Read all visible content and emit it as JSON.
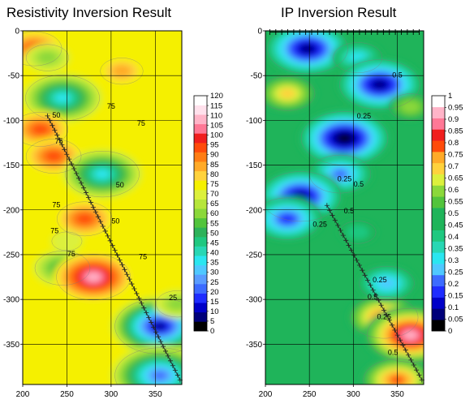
{
  "chart_data": [
    {
      "type": "heatmap",
      "title": "Resistivity Inversion Result",
      "xlabel": "",
      "ylabel": "",
      "xlim": [
        200,
        380
      ],
      "ylim": [
        -395,
        0
      ],
      "xticks": [
        200,
        250,
        300,
        350
      ],
      "yticks": [
        0,
        -50,
        -100,
        -150,
        -200,
        -250,
        -300,
        -350
      ],
      "grid": true,
      "background_value": 75,
      "colorbar": {
        "levels": [
          0,
          5,
          10,
          15,
          20,
          25,
          30,
          35,
          40,
          45,
          50,
          55,
          60,
          65,
          70,
          75,
          80,
          85,
          90,
          95,
          100,
          105,
          110,
          115,
          120
        ],
        "tick_labels": [
          "0",
          "5",
          "10",
          "15",
          "20",
          "25",
          "30",
          "35",
          "40",
          "45",
          "50",
          "55",
          "60",
          "65",
          "70",
          "75",
          "80",
          "85",
          "90",
          "95",
          "100",
          "105",
          "110",
          "115",
          "120"
        ],
        "colors": [
          "#000000",
          "#00007a",
          "#0000c8",
          "#1e2cff",
          "#3c6bff",
          "#5a9cff",
          "#4fc8ff",
          "#2ae6f0",
          "#28d7b4",
          "#1fc880",
          "#2db25a",
          "#52c43c",
          "#8bd83a",
          "#b6e63a",
          "#dcf03c",
          "#f5f000",
          "#ffd23c",
          "#ffaa28",
          "#ff7d14",
          "#ff4b0a",
          "#f01e1e",
          "#ff7896",
          "#ffb4c8",
          "#ffe1ec",
          "#ffffff"
        ]
      },
      "anomalies": [
        {
          "x": 213,
          "z": -20,
          "value": 100
        },
        {
          "x": 228,
          "z": -30,
          "value": 60
        },
        {
          "x": 245,
          "z": -75,
          "value": 35
        },
        {
          "x": 312,
          "z": -45,
          "value": 90
        },
        {
          "x": 220,
          "z": -110,
          "value": 100
        },
        {
          "x": 235,
          "z": -140,
          "value": 100
        },
        {
          "x": 290,
          "z": -160,
          "value": 35
        },
        {
          "x": 270,
          "z": -210,
          "value": 100
        },
        {
          "x": 250,
          "z": -235,
          "value": 70
        },
        {
          "x": 245,
          "z": -265,
          "value": 50
        },
        {
          "x": 280,
          "z": -275,
          "value": 115
        },
        {
          "x": 355,
          "z": -330,
          "value": 5
        },
        {
          "x": 375,
          "z": -305,
          "value": 60
        },
        {
          "x": 355,
          "z": -385,
          "value": 20
        }
      ],
      "contour_labels": [
        {
          "x": 238,
          "z": -97,
          "text": "50"
        },
        {
          "x": 300,
          "z": -87,
          "text": "75"
        },
        {
          "x": 334,
          "z": -106,
          "text": "75"
        },
        {
          "x": 241,
          "z": -126,
          "text": "75"
        },
        {
          "x": 310,
          "z": -175,
          "text": "50"
        },
        {
          "x": 238,
          "z": -197,
          "text": "75"
        },
        {
          "x": 305,
          "z": -215,
          "text": "50"
        },
        {
          "x": 236,
          "z": -226,
          "text": "75"
        },
        {
          "x": 255,
          "z": -252,
          "text": "75"
        },
        {
          "x": 336,
          "z": -255,
          "text": "75"
        },
        {
          "x": 370,
          "z": -301,
          "text": "25"
        }
      ],
      "electrode_line": {
        "x_start": 228,
        "z_start": -95,
        "x_end": 378,
        "z_end": -390,
        "count": 56
      }
    },
    {
      "type": "heatmap",
      "title": "IP Inversion Result",
      "xlabel": "",
      "ylabel": "",
      "xlim": [
        200,
        380
      ],
      "ylim": [
        -395,
        0
      ],
      "xticks": [
        200,
        250,
        300,
        350
      ],
      "yticks": [
        0,
        -50,
        -100,
        -150,
        -200,
        -250,
        -300,
        -350
      ],
      "grid": true,
      "background_value": 0.5,
      "colorbar": {
        "levels": [
          0,
          0.05,
          0.1,
          0.15,
          0.2,
          0.25,
          0.3,
          0.35,
          0.4,
          0.45,
          0.5,
          0.55,
          0.6,
          0.65,
          0.7,
          0.75,
          0.8,
          0.85,
          0.9,
          0.95,
          1
        ],
        "tick_labels": [
          "0",
          "0.05",
          "0.1",
          "0.15",
          "0.2",
          "0.25",
          "0.3",
          "0.35",
          "0.4",
          "0.45",
          "0.5",
          "0.55",
          "0.6",
          "0.65",
          "0.7",
          "0.75",
          "0.8",
          "0.85",
          "0.9",
          "0.95",
          "1"
        ],
        "colors": [
          "#000000",
          "#00007a",
          "#0000c8",
          "#1e2cff",
          "#3c6bff",
          "#4fc8ff",
          "#2ae6f0",
          "#28d7b4",
          "#1fc880",
          "#1fb45a",
          "#1fb45a",
          "#52c43c",
          "#8bd83a",
          "#dcf03c",
          "#ffd23c",
          "#ffaa28",
          "#ff4b0a",
          "#f01e1e",
          "#ff7896",
          "#ffb4c8",
          "#ffffff"
        ]
      },
      "anomalies": [
        {
          "x": 225,
          "z": -70,
          "value": 0.75
        },
        {
          "x": 248,
          "z": -20,
          "value": 0.05
        },
        {
          "x": 305,
          "z": -30,
          "value": 0.3
        },
        {
          "x": 330,
          "z": -60,
          "value": 0.05
        },
        {
          "x": 365,
          "z": -85,
          "value": 0.65
        },
        {
          "x": 290,
          "z": -120,
          "value": 0.0
        },
        {
          "x": 285,
          "z": -160,
          "value": 0.2
        },
        {
          "x": 240,
          "z": -185,
          "value": 0.05
        },
        {
          "x": 225,
          "z": -210,
          "value": 0.15
        },
        {
          "x": 305,
          "z": -225,
          "value": 0.4
        },
        {
          "x": 335,
          "z": -320,
          "value": 0.85
        },
        {
          "x": 365,
          "z": -340,
          "value": 1.0
        },
        {
          "x": 350,
          "z": -390,
          "value": 0.85
        },
        {
          "x": 338,
          "z": -282,
          "value": 0.25
        }
      ],
      "contour_labels": [
        {
          "x": 350,
          "z": -52,
          "text": "0.5"
        },
        {
          "x": 312,
          "z": -98,
          "text": "0.25"
        },
        {
          "x": 290,
          "z": -168,
          "text": "0.25"
        },
        {
          "x": 306,
          "z": -174,
          "text": "0.5"
        },
        {
          "x": 295,
          "z": -204,
          "text": "0.5"
        },
        {
          "x": 262,
          "z": -219,
          "text": "0.25"
        },
        {
          "x": 330,
          "z": -281,
          "text": "0.25"
        },
        {
          "x": 322,
          "z": -300,
          "text": "0.5"
        },
        {
          "x": 335,
          "z": -322,
          "text": "0.25"
        },
        {
          "x": 345,
          "z": -362,
          "text": "0.5"
        }
      ],
      "electrode_line": {
        "x_start": 270,
        "z_start": -195,
        "x_end": 378,
        "z_end": -390,
        "count": 36
      },
      "surface_electrodes": {
        "x_start": 205,
        "x_end": 375,
        "count": 26
      }
    }
  ]
}
